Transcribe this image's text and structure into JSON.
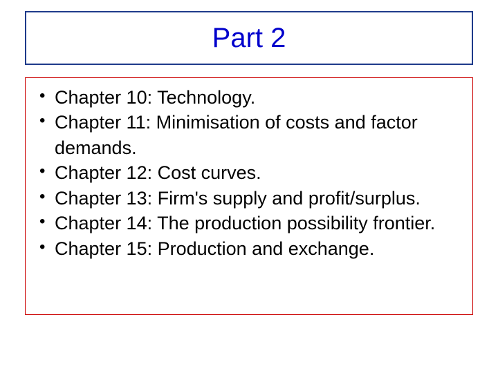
{
  "title_box": {
    "border_color": "#1e3a8a",
    "text": "Part 2",
    "text_color": "#0000cc",
    "font_size": 40
  },
  "content_box": {
    "border_color": "#cc0000",
    "bullet_color": "#000000",
    "text_color": "#000000",
    "font_size": 27,
    "items": [
      "Chapter 10: Technology.",
      "Chapter 11: Minimisation of costs and factor demands.",
      "Chapter 12: Cost curves.",
      "Chapter 13: Firm's supply and profit/surplus.",
      "Chapter 14: The production possibility frontier.",
      "Chapter 15: Production and exchange."
    ]
  },
  "background_color": "#ffffff"
}
